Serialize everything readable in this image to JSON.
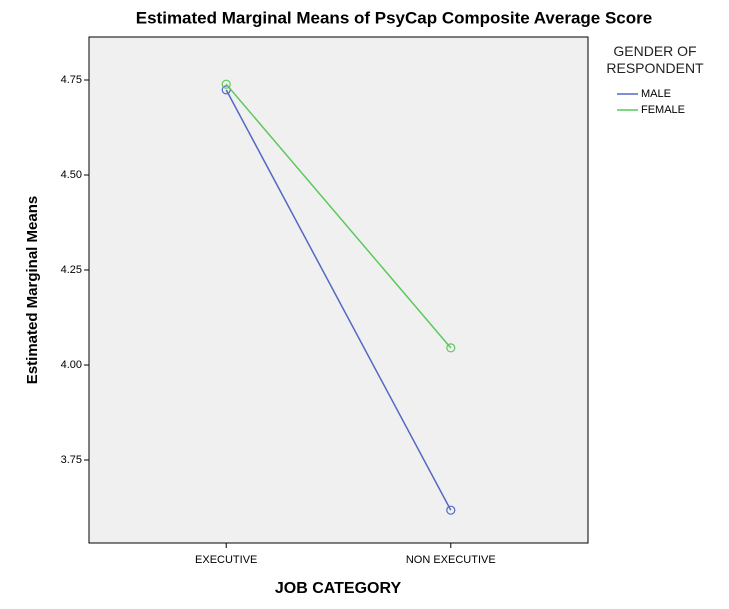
{
  "chart_data": {
    "type": "line",
    "title": "Estimated Marginal Means of PsyCap Composite Average Score",
    "x_label": "JOB CATEGORY",
    "y_label": "Estimated Marginal Means",
    "categories": [
      "EXECUTIVE",
      "NON EXECUTIVE"
    ],
    "series": [
      {
        "name": "MALE",
        "color": "#5468c4",
        "values": [
          4.724,
          3.618
        ]
      },
      {
        "name": "FEMALE",
        "color": "#5cc85c",
        "values": [
          4.739,
          4.045
        ]
      }
    ],
    "legend_title": "GENDER OF RESPONDENT",
    "ylim": [
      3.5316,
      4.8632
    ],
    "yticks": [
      {
        "value": 3.75,
        "label": "3.75"
      },
      {
        "value": 4,
        "label": "4.00"
      },
      4.25,
      {
        "value": 4.5,
        "label": "4.50"
      },
      4.75
    ]
  }
}
